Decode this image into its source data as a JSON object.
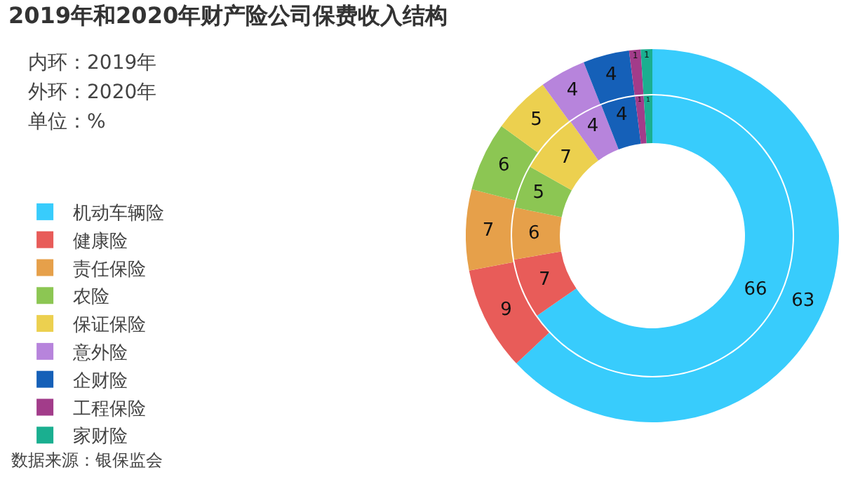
{
  "chart_data": {
    "type": "donut",
    "title": "2019年和2020年财产险公司保费收入结构",
    "annotations": [
      "内环：2019年",
      "外环：2020年",
      "单位：%",
      "数据来源：银保监会"
    ],
    "categories": [
      "机动车辆险",
      "健康险",
      "责任保险",
      "农险",
      "保证保险",
      "意外险",
      "企财险",
      "工程保险",
      "家财险"
    ],
    "colors": [
      "#38ccfc",
      "#e85c59",
      "#e6a04a",
      "#8cc653",
      "#ecd04f",
      "#b784dc",
      "#1560b8",
      "#a23c8a",
      "#1aaf90"
    ],
    "series": [
      {
        "values": [
          66,
          7,
          6,
          5,
          7,
          4,
          4,
          1,
          1
        ]
      },
      {
        "values": [
          63,
          9,
          7,
          6,
          5,
          4,
          4,
          1,
          1
        ]
      }
    ],
    "data_labels": true,
    "legend": "left"
  }
}
